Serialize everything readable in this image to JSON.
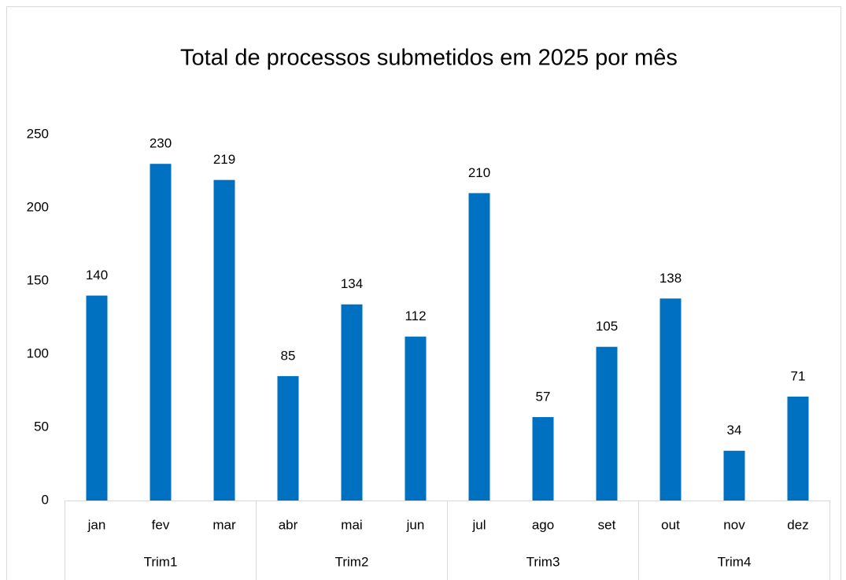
{
  "chart_data": {
    "type": "bar",
    "title": "Total de processos submetidos em 2025 por mês",
    "categories": [
      "jan",
      "fev",
      "mar",
      "abr",
      "mai",
      "jun",
      "jul",
      "ago",
      "set",
      "out",
      "nov",
      "dez"
    ],
    "groups": [
      "Trim1",
      "Trim2",
      "Trim3",
      "Trim4"
    ],
    "values": [
      140,
      230,
      219,
      85,
      134,
      112,
      210,
      57,
      105,
      138,
      34,
      71
    ],
    "color": "#0070c0",
    "ylim": [
      0,
      250
    ],
    "yticks": [
      0,
      50,
      100,
      150,
      200,
      250
    ],
    "grid": false
  }
}
